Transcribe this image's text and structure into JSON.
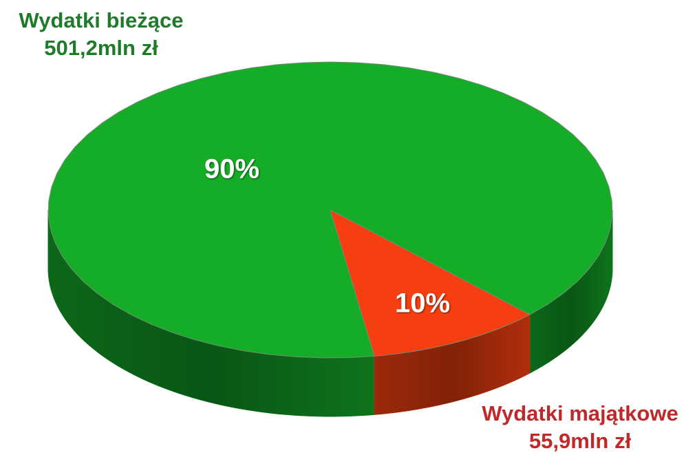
{
  "chart_data": {
    "type": "pie3d",
    "categories": [
      "Wydatki bieżące",
      "Wydatki majątkowe"
    ],
    "amount_labels": [
      "501,2mln zł",
      "55,9mln zł"
    ],
    "values": [
      90,
      10
    ],
    "value_labels": [
      "90%",
      "10%"
    ],
    "colors": [
      "#15ad27",
      "#f53f10"
    ],
    "side_colors": [
      "#0e7a1d",
      "#b9300c"
    ],
    "label_colors": [
      "#1f7a2a",
      "#c0282a"
    ]
  }
}
